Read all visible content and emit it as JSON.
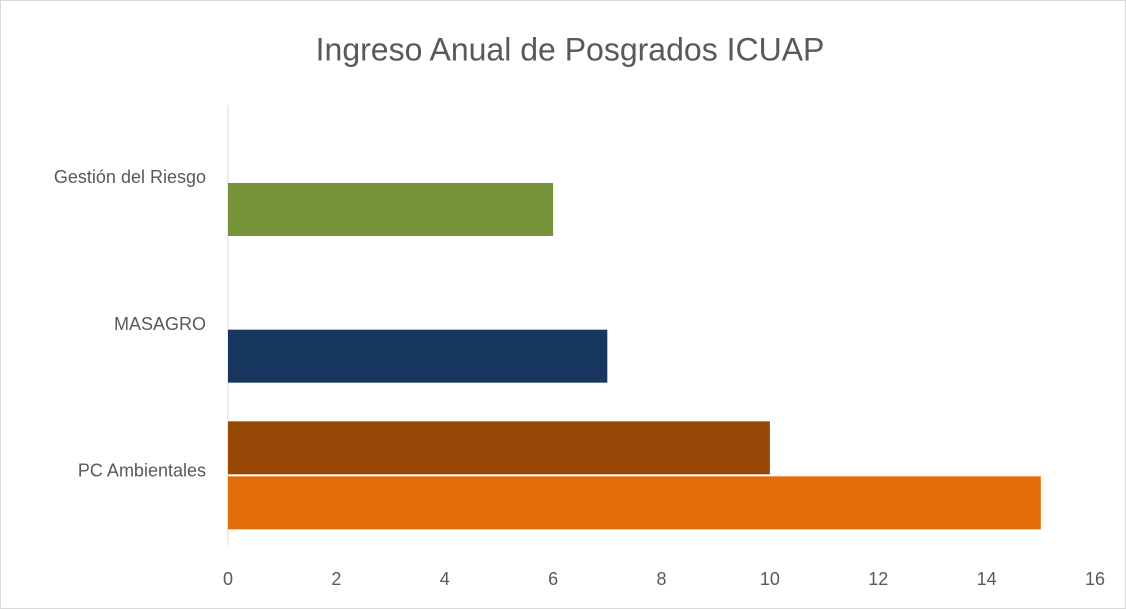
{
  "chart_data": {
    "type": "bar",
    "orientation": "horizontal",
    "title": "Ingreso Anual de Posgrados ICUAP",
    "categories": [
      "PC Ambientales",
      "MASAGRO",
      "Gestión del Riesgo"
    ],
    "series": [
      {
        "color": "#974706",
        "values": [
          10,
          null,
          null
        ]
      },
      {
        "colors": [
          "#E36C0A",
          "#17375E",
          "#77933C"
        ],
        "values": [
          15,
          7,
          6
        ]
      }
    ],
    "xlim": [
      0,
      16
    ],
    "xticks": [
      0,
      2,
      4,
      6,
      8,
      10,
      12,
      14,
      16
    ],
    "grid": false
  }
}
